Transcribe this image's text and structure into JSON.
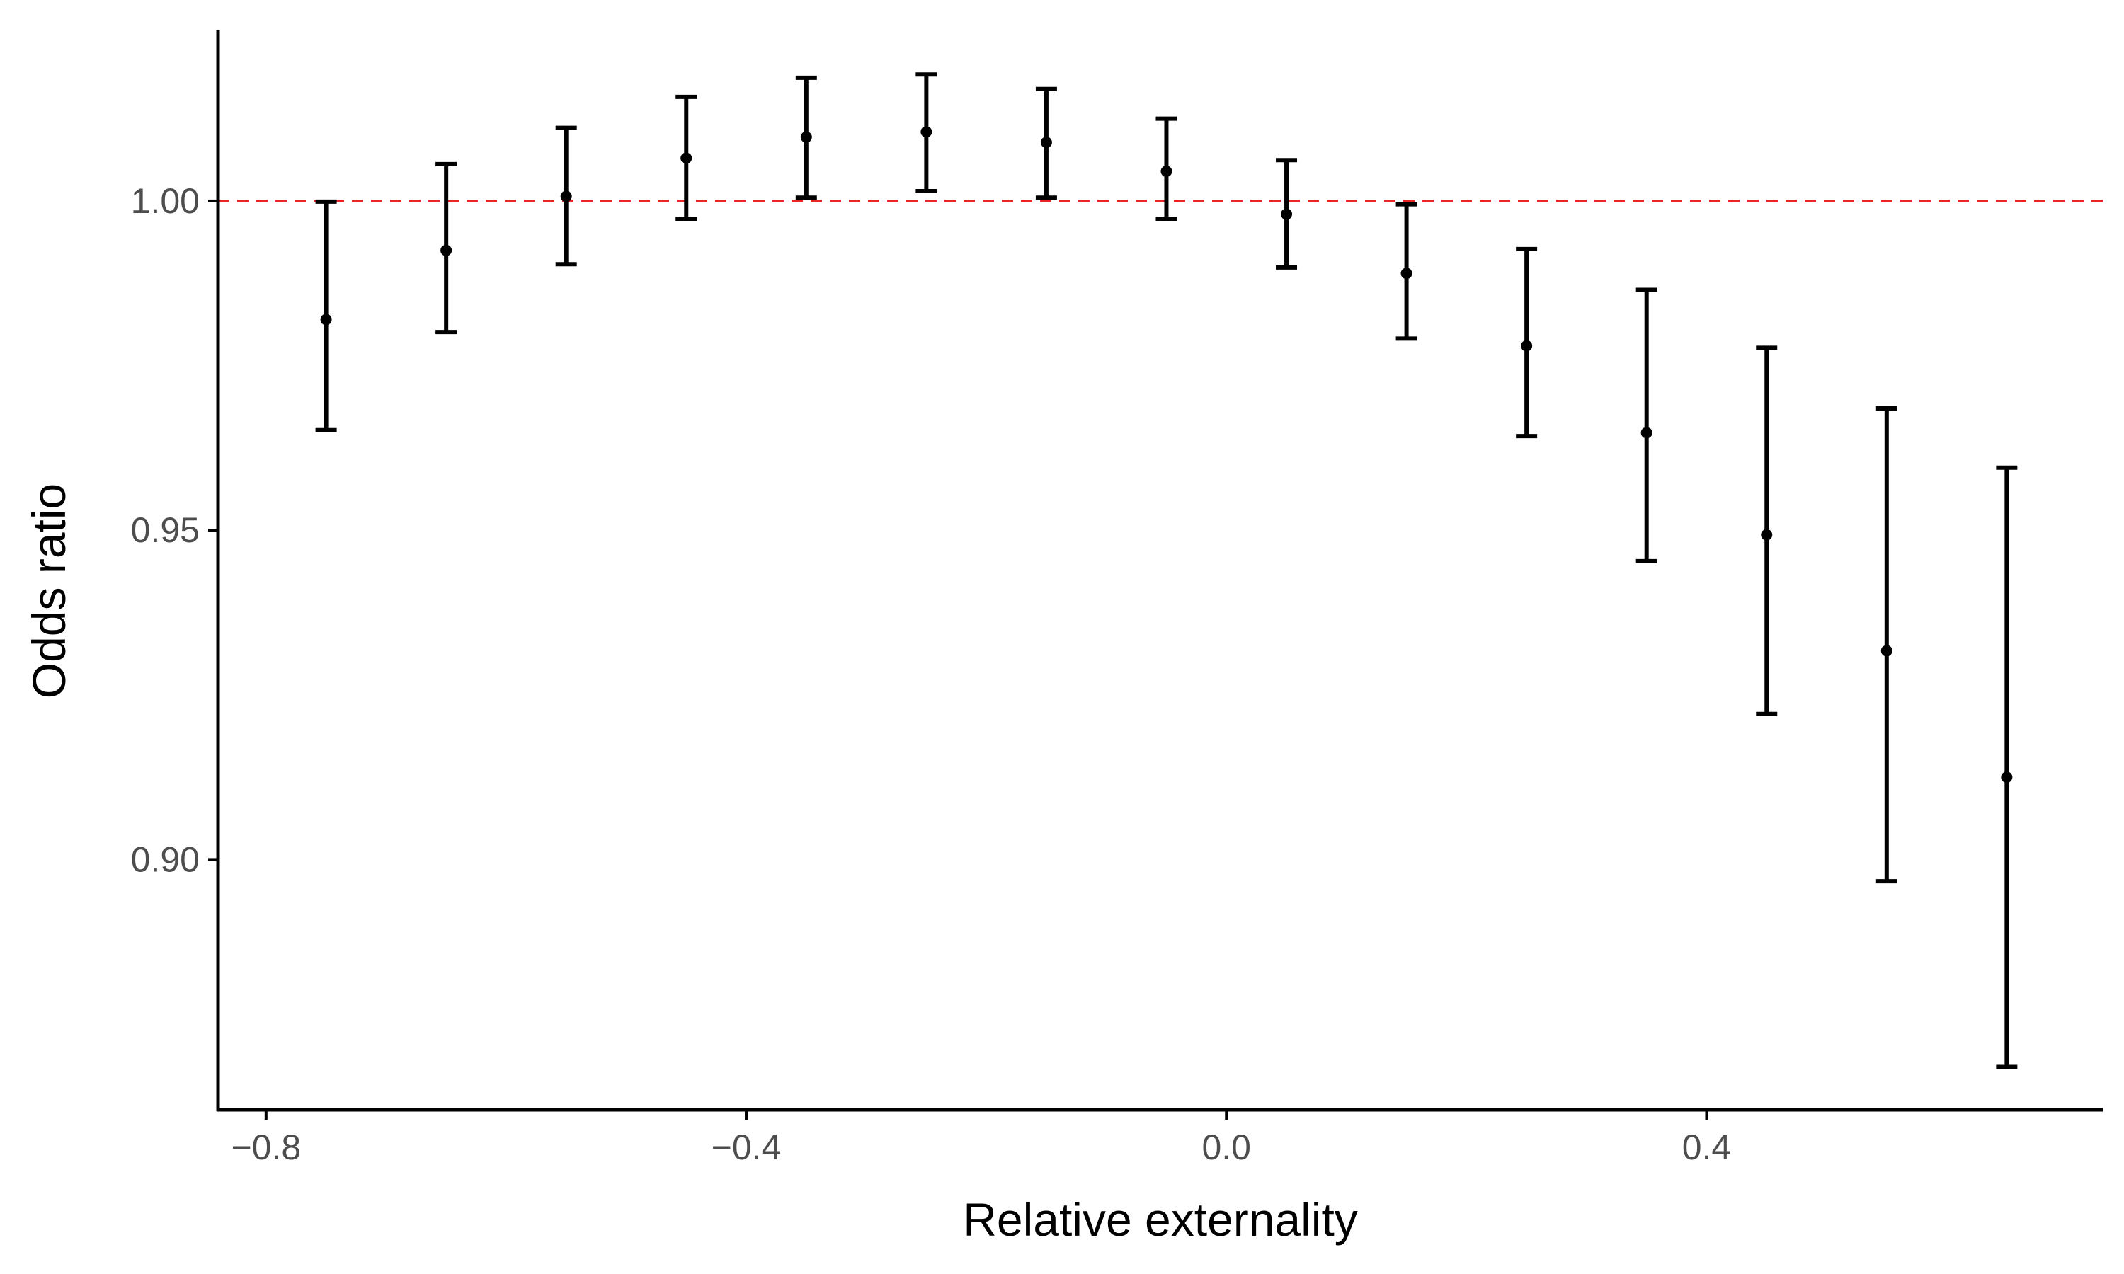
{
  "chart_data": {
    "type": "scatter",
    "subtype": "point-with-error-bars",
    "title": "",
    "xlabel": "Relative externality",
    "ylabel": "Odds ratio",
    "xlim": [
      -0.84,
      0.73
    ],
    "ylim": [
      0.862,
      1.026
    ],
    "xticks": [
      -0.8,
      -0.4,
      0.0,
      0.4
    ],
    "xtick_labels": [
      "−0.8",
      "−0.4",
      "0.0",
      "0.4"
    ],
    "yticks": [
      0.9,
      0.95,
      1.0
    ],
    "ytick_labels": [
      "0.90",
      "0.95",
      "1.00"
    ],
    "grid": false,
    "legend": "none",
    "reference_line": {
      "y": 1.0,
      "style": "dashed",
      "color": "#e8262a"
    },
    "point_color": "#000000",
    "series": [
      {
        "x": [
          -0.75,
          -0.65,
          -0.55,
          -0.45,
          -0.35,
          -0.25,
          -0.15,
          -0.05,
          0.05,
          0.15,
          0.25,
          0.35,
          0.45,
          0.55,
          0.65
        ],
        "y": [
          0.982,
          0.9925,
          1.0007,
          1.0065,
          1.0097,
          1.0105,
          1.0089,
          1.0045,
          0.998,
          0.989,
          0.978,
          0.9648,
          0.9493,
          0.9317,
          0.9125
        ],
        "lower": [
          0.9652,
          0.9801,
          0.9904,
          0.9973,
          1.0005,
          1.0015,
          1.0005,
          0.9973,
          0.9899,
          0.9791,
          0.9643,
          0.9453,
          0.9221,
          0.8967,
          0.8685
        ],
        "upper": [
          0.9999,
          1.0056,
          1.0111,
          1.0158,
          1.0187,
          1.0192,
          1.017,
          1.0125,
          1.0062,
          0.9995,
          0.9927,
          0.9865,
          0.9777,
          0.9685,
          0.9595
        ]
      }
    ]
  }
}
